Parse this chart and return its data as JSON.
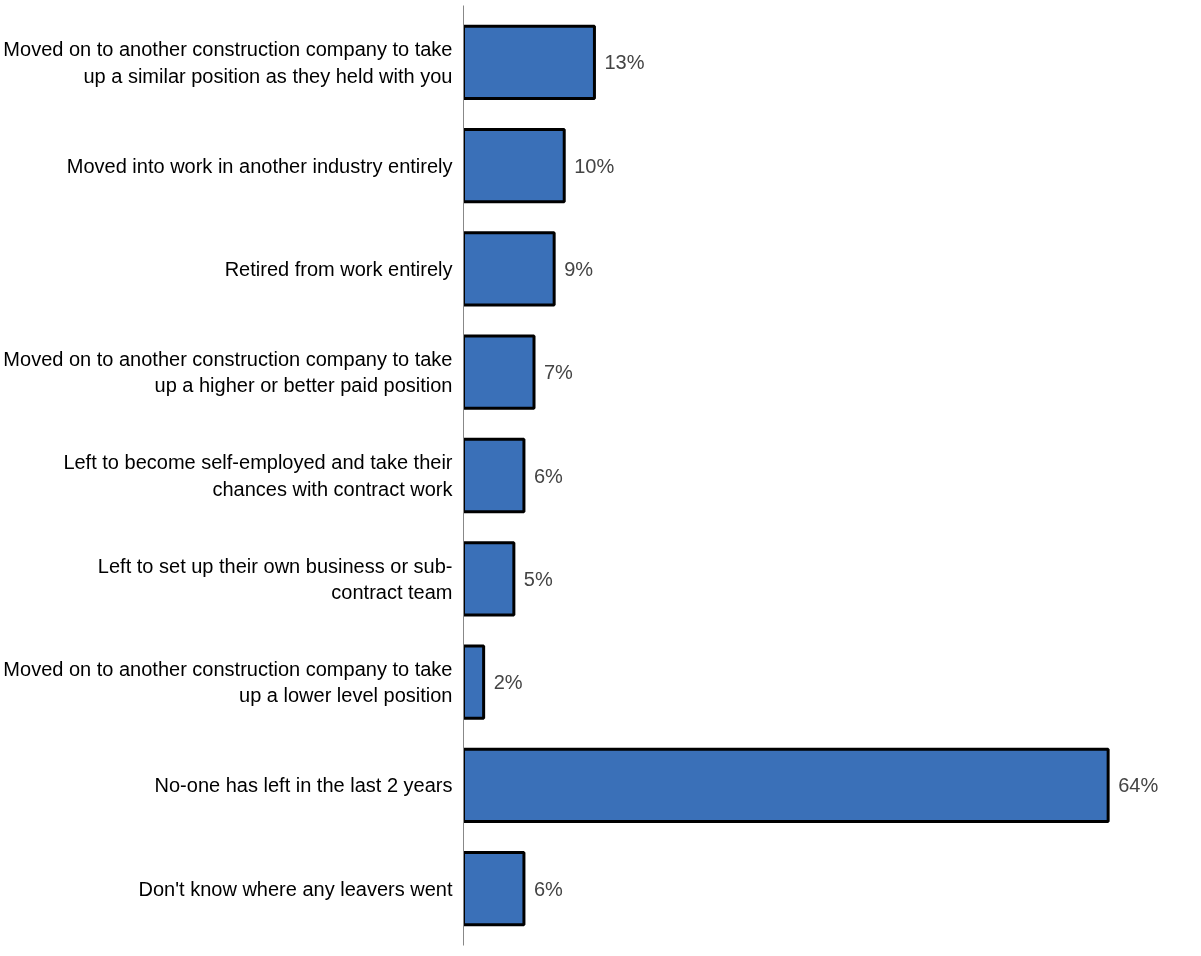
{
  "chart_data": {
    "type": "bar",
    "orientation": "horizontal",
    "categories": [
      "Moved on to another construction company to take up a similar position as they held with you",
      "Moved into work in another industry entirely",
      "Retired from work entirely",
      "Moved on to another construction company to take up a higher or better paid position",
      "Left to become self-employed and take their chances with contract work",
      "Left to set up their own business or sub-contract team",
      "Moved on to another construction company to take up a lower level position",
      "No-one has left in the last 2 years",
      "Don't know where any leavers went"
    ],
    "values": [
      13,
      10,
      9,
      7,
      6,
      5,
      2,
      64,
      6
    ],
    "value_labels": [
      "13%",
      "10%",
      "9%",
      "7%",
      "6%",
      "5%",
      "2%",
      "64%",
      "6%"
    ],
    "color": "#3a70b8",
    "grid": false
  }
}
